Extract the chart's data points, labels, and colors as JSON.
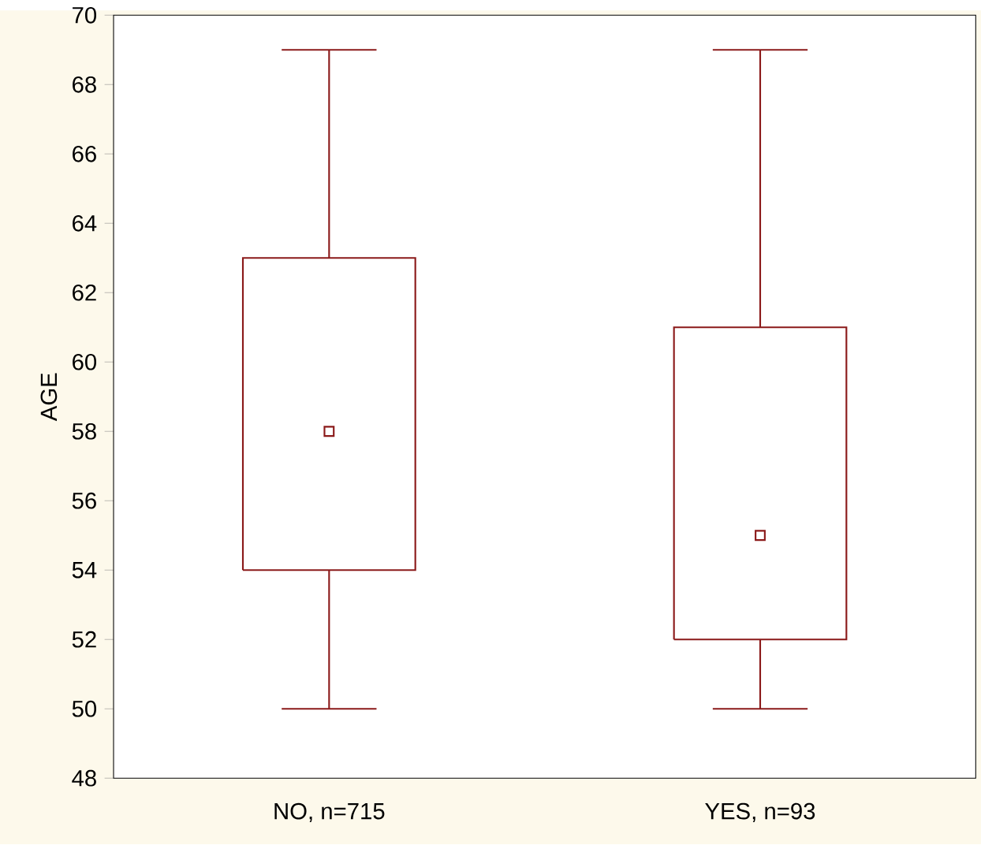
{
  "chart_data": {
    "type": "box",
    "ylabel": "AGE",
    "categories": [
      "NO, n=715",
      "YES, n=93"
    ],
    "boxes": [
      {
        "low": 50,
        "q1": 54,
        "median": 58,
        "q3": 63,
        "high": 69
      },
      {
        "low": 50,
        "q1": 52,
        "median": 55,
        "q3": 61,
        "high": 69
      }
    ],
    "color": "#8b1a1a",
    "marker": "square",
    "ylim": [
      48,
      70
    ],
    "yticks": [
      48,
      50,
      52,
      54,
      56,
      58,
      60,
      62,
      64,
      66,
      68,
      70
    ],
    "grid": false
  }
}
